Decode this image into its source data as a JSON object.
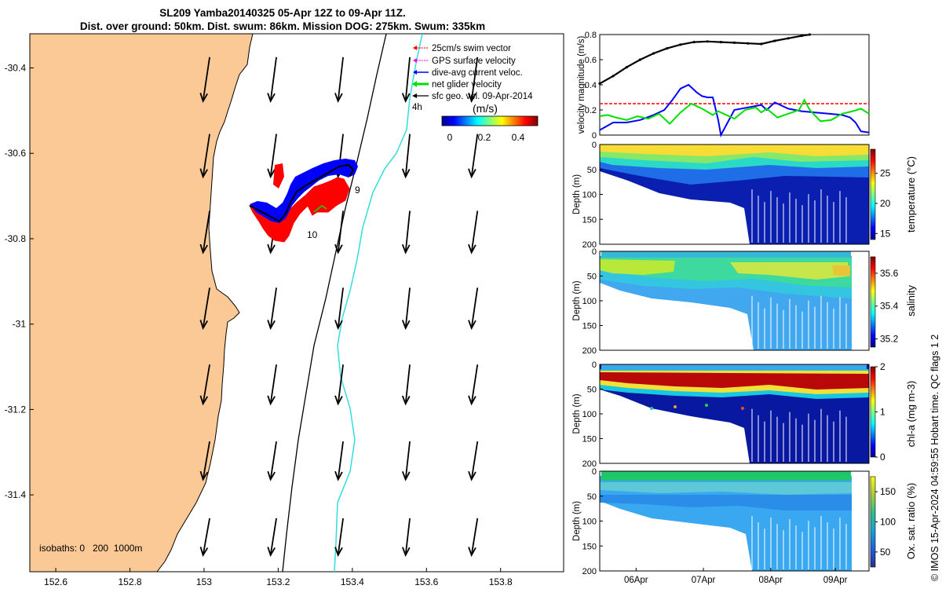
{
  "title": {
    "line1": "SL209 Yamba20140325 05-Apr 12Z to 09-Apr 11Z.",
    "line2": "Dist. over ground: 50km. Dist. swum: 86km. Mission DOG: 275km. Swum: 335km"
  },
  "credit": "© IMOS 15-Apr-2024 04:59:55 Hobart time. QC flags 1  2",
  "colors": {
    "land": "#fbc995",
    "swim_vector": "#ff0000",
    "gps_velocity": "#ff00ff",
    "dive_avg": "#0000ff",
    "net_glider": "#00e000",
    "sfc_geo": "#000000",
    "isobath_200": "#000000",
    "isobath_1000": "#33dddd"
  },
  "chart_data": [
    {
      "type": "map",
      "x_ticks": [
        "152.6",
        "152.8",
        "153",
        "153.2",
        "153.4",
        "153.6",
        "153.8"
      ],
      "y_ticks": [
        "-30.4",
        "-30.6",
        "-30.8",
        "-31",
        "-31.2",
        "-31.4"
      ],
      "xlim": [
        152.53,
        153.97
      ],
      "ylim": [
        -31.58,
        -30.32
      ],
      "legend": [
        {
          "label": "25cm/s swim vector",
          "color": "#ff0000"
        },
        {
          "label": "GPS surface velocity",
          "color": "#ff00ff"
        },
        {
          "label": "dive-avg current veloc.",
          "color": "#0000ff"
        },
        {
          "label": "net glider velocity",
          "color": "#00e000"
        },
        {
          "label": "sfc geo. vel. 09-Apr-2014",
          "color": "#000000"
        }
      ],
      "legend_note": "4h",
      "colorbar": {
        "label": "(m/s)",
        "ticks": [
          "0",
          "0.2",
          "0.4"
        ],
        "range": [
          0,
          0.5
        ]
      },
      "isobaths_label": "isobaths: 0   200  1000m",
      "track_labels": [
        {
          "text": "9",
          "lon": 153.44,
          "lat": -30.665
        },
        {
          "text": "10",
          "lon": 153.26,
          "lat": -30.78
        }
      ],
      "arrow_grid": {
        "lons": [
          153.01,
          153.19,
          153.37,
          153.55,
          153.73
        ],
        "lats": [
          -30.43,
          -30.61,
          -30.79,
          -30.97,
          -31.15,
          -31.33,
          -31.51
        ]
      }
    },
    {
      "type": "line",
      "ylabel": "velocity magnitude (m/s)",
      "ylim": [
        0,
        0.8
      ],
      "y_ticks": [
        "0",
        "0.2",
        "0.4",
        "0.6",
        "0.8"
      ],
      "xlim": [
        0,
        1
      ],
      "series": [
        {
          "color": "#000000",
          "x": [
            0.0,
            0.05,
            0.1,
            0.15,
            0.2,
            0.25,
            0.3,
            0.35,
            0.4,
            0.45,
            0.5,
            0.55,
            0.6,
            0.65,
            0.7,
            0.75,
            0.78
          ],
          "values": [
            0.41,
            0.47,
            0.54,
            0.6,
            0.65,
            0.69,
            0.72,
            0.74,
            0.745,
            0.74,
            0.735,
            0.73,
            0.725,
            0.75,
            0.77,
            0.79,
            0.8
          ]
        },
        {
          "color": "#ff0000",
          "dashed": true,
          "x": [
            0.0,
            1.0
          ],
          "values": [
            0.25,
            0.25
          ]
        },
        {
          "color": "#0000ff",
          "x": [
            0.0,
            0.05,
            0.1,
            0.15,
            0.2,
            0.24,
            0.27,
            0.3,
            0.33,
            0.36,
            0.38,
            0.4,
            0.42,
            0.44,
            0.45,
            0.5,
            0.55,
            0.6,
            0.62,
            0.65,
            0.7,
            0.75,
            0.8,
            0.85,
            0.9,
            0.93,
            0.95,
            0.97,
            1.0
          ],
          "values": [
            0.04,
            0.1,
            0.1,
            0.12,
            0.16,
            0.2,
            0.28,
            0.37,
            0.4,
            0.34,
            0.31,
            0.3,
            0.3,
            0.12,
            0.0,
            0.2,
            0.22,
            0.24,
            0.2,
            0.26,
            0.21,
            0.19,
            0.18,
            0.17,
            0.16,
            0.14,
            0.1,
            0.03,
            0.02
          ]
        },
        {
          "color": "#00e000",
          "x": [
            0.0,
            0.03,
            0.06,
            0.1,
            0.14,
            0.18,
            0.22,
            0.26,
            0.3,
            0.34,
            0.38,
            0.42,
            0.44,
            0.46,
            0.5,
            0.54,
            0.58,
            0.6,
            0.62,
            0.66,
            0.7,
            0.74,
            0.76,
            0.78,
            0.82,
            0.86,
            0.9,
            0.94,
            0.97,
            1.0
          ],
          "values": [
            0.15,
            0.16,
            0.14,
            0.12,
            0.15,
            0.13,
            0.17,
            0.09,
            0.18,
            0.25,
            0.21,
            0.16,
            0.19,
            0.17,
            0.13,
            0.2,
            0.22,
            0.18,
            0.21,
            0.14,
            0.17,
            0.2,
            0.28,
            0.2,
            0.11,
            0.12,
            0.17,
            0.19,
            0.21,
            0.17
          ]
        }
      ]
    },
    {
      "type": "heatmap",
      "ylabel": "Depth (m)",
      "y_ticks": [
        "0",
        "50",
        "100",
        "150",
        "200"
      ],
      "ylim": [
        0,
        200
      ],
      "colorbar_label": "temperature (°C)",
      "colorbar_ticks": [
        "15",
        "20",
        "25"
      ],
      "crange": [
        14,
        29
      ]
    },
    {
      "type": "heatmap",
      "ylabel": "Depth (m)",
      "y_ticks": [
        "0",
        "50",
        "100",
        "150",
        "200"
      ],
      "ylim": [
        0,
        200
      ],
      "colorbar_label": "salinity",
      "colorbar_ticks": [
        "35.2",
        "35.4",
        "35.6"
      ],
      "crange": [
        35.15,
        35.7
      ]
    },
    {
      "type": "heatmap",
      "ylabel": "Depth (m)",
      "y_ticks": [
        "0",
        "50",
        "100",
        "150",
        "200"
      ],
      "ylim": [
        0,
        200
      ],
      "colorbar_label": "chl-a (mg m-3)",
      "colorbar_ticks": [
        "0",
        "1",
        "2"
      ],
      "crange": [
        0,
        2
      ]
    },
    {
      "type": "heatmap",
      "ylabel": "Depth (m)",
      "y_ticks": [
        "0",
        "50",
        "100",
        "150",
        "200"
      ],
      "ylim": [
        0,
        200
      ],
      "colorbar_label": "Ox. sat. ratio (%)",
      "colorbar_ticks": [
        "50",
        "100",
        "150"
      ],
      "crange": [
        25,
        175
      ],
      "x_ticks": [
        "06Apr",
        "07Apr",
        "08Apr",
        "09Apr"
      ]
    }
  ]
}
